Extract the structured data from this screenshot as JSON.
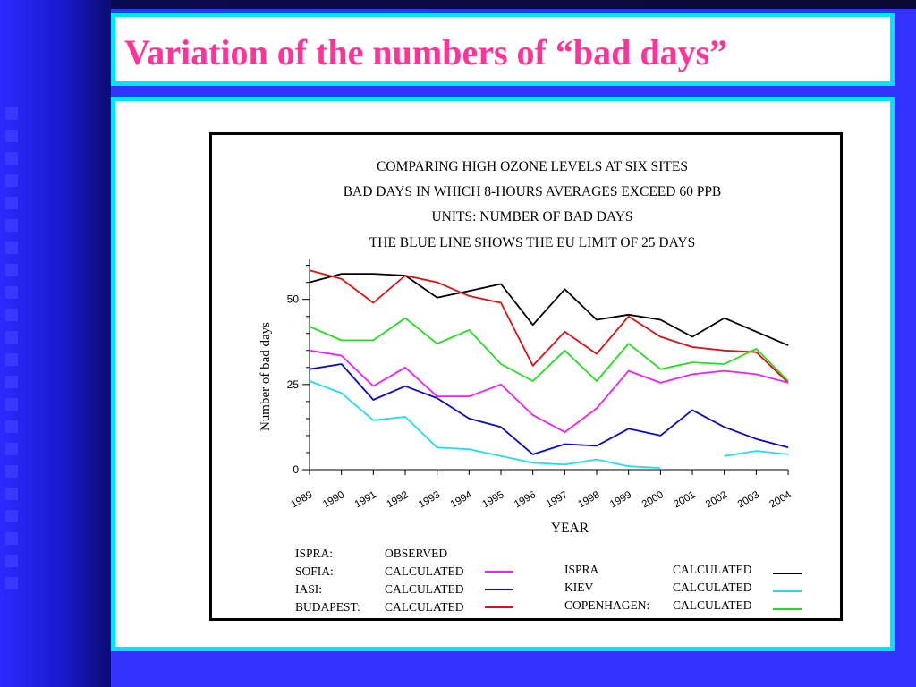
{
  "slide": {
    "title": "Variation of the numbers of “bad days”"
  },
  "chart_data": {
    "type": "line",
    "title_lines": [
      "COMPARING  HIGH  OZONE LEVELS AT SIX SITES",
      "BAD DAYS IN WHICH 8-HOURS AVERAGES EXCEED 60 PPB",
      "UNITS:   NUMBER OF BAD DAYS",
      "THE BLUE LINE SHOWS THE EU LIMIT OF 25 DAYS"
    ],
    "xlabel": "YEAR",
    "ylabel": "Number of bad days",
    "ylim": [
      0,
      62
    ],
    "yticks": [
      0,
      25,
      50
    ],
    "x": [
      "1989",
      "1990",
      "1991",
      "1992",
      "1993",
      "1994",
      "1995",
      "1996",
      "1997",
      "1998",
      "1999",
      "2000",
      "2001",
      "2002",
      "2003",
      "2004"
    ],
    "series": [
      {
        "name": "ISPRA",
        "values": [
          55,
          57.5,
          57.5,
          57,
          50.5,
          52.5,
          54.5,
          42.5,
          53,
          44,
          45.5,
          44,
          39,
          44.5,
          40.5,
          36.5
        ],
        "color": "#000000"
      },
      {
        "name": "BUDAPEST",
        "values": [
          58.5,
          56,
          49,
          57,
          55,
          51,
          49,
          30.5,
          40.5,
          34,
          45,
          39,
          36,
          35,
          34.5,
          25.5
        ],
        "color": "#dd1111"
      },
      {
        "name": "COPENHAGEN",
        "values": [
          42,
          38,
          38,
          44.5,
          37,
          41,
          31,
          26,
          35,
          26,
          37,
          29.5,
          31.5,
          31,
          35.5,
          26
        ],
        "color": "#22dd22"
      },
      {
        "name": "SOFIA",
        "values": [
          35,
          33.5,
          24.5,
          30,
          21.5,
          21.5,
          25,
          16,
          11,
          18,
          29,
          25.5,
          28,
          29,
          28,
          25.5
        ],
        "color": "#ee22ee"
      },
      {
        "name": "IASI",
        "values": [
          29.5,
          31,
          20.5,
          24.5,
          21,
          15,
          12.5,
          4.5,
          7.5,
          7,
          12,
          10,
          17.5,
          12.5,
          9,
          6.5
        ],
        "color": "#0a0acc"
      },
      {
        "name": "KIEV",
        "values": [
          26,
          22.5,
          14.5,
          15.5,
          6.5,
          6,
          4,
          2,
          1.5,
          3,
          1,
          0.5,
          null,
          4,
          5.5,
          4.5
        ],
        "color": "#22ddee"
      }
    ],
    "legend": [
      {
        "site": "ISPRA:",
        "kind": "OBSERVED",
        "color": ""
      },
      {
        "site": "SOFIA:",
        "kind": "CALCULATED",
        "color": "#ee22ee"
      },
      {
        "site": "IASI:",
        "kind": "CALCULATED",
        "color": "#0a0acc"
      },
      {
        "site": "BUDAPEST:",
        "kind": "CALCULATED",
        "color": "#dd1111"
      },
      {
        "site": "ISPRA",
        "kind": "CALCULATED",
        "color": "#000000"
      },
      {
        "site": "KIEV",
        "kind": "CALCULATED",
        "color": "#22ddee"
      },
      {
        "site": "COPENHAGEN:",
        "kind": "CALCULATED",
        "color": "#22dd22"
      }
    ]
  }
}
